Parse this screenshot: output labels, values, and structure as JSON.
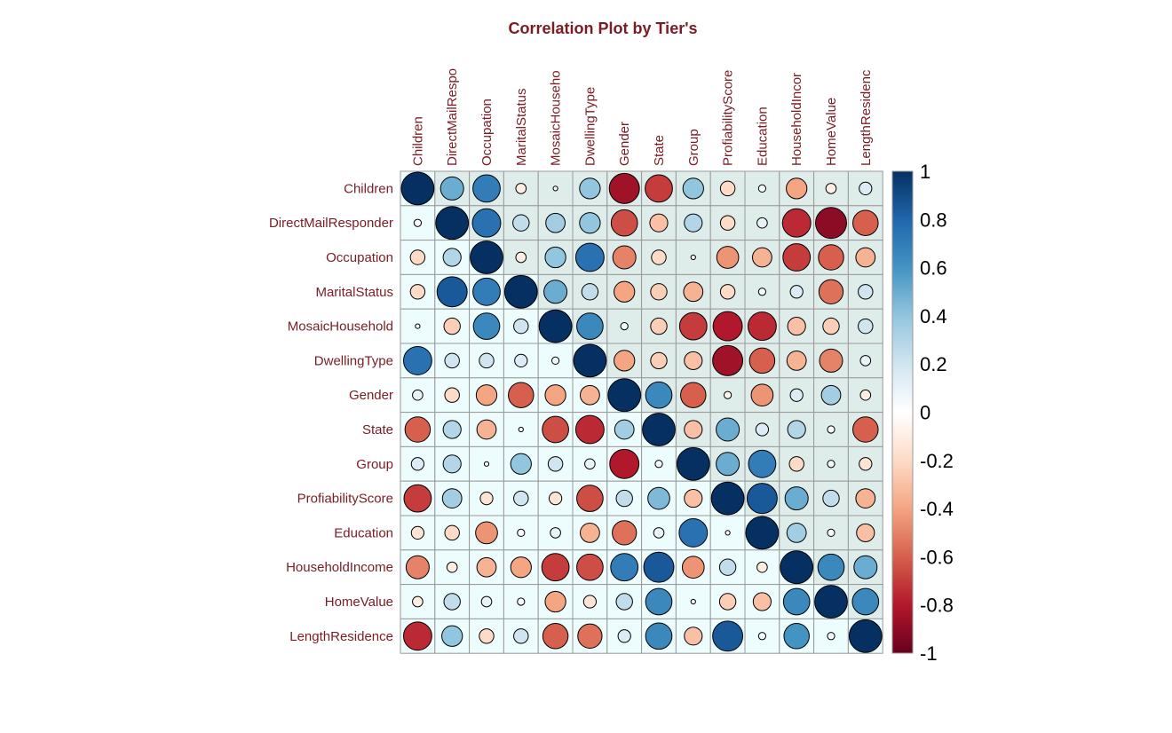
{
  "chart_data": {
    "type": "heatmap",
    "subtype": "correlation-circle",
    "title": "Correlation Plot by Tier's",
    "variables": [
      "Children",
      "DirectMailResponder",
      "Occupation",
      "MaritalStatus",
      "MosaicHousehold",
      "DwellingType",
      "Gender",
      "State",
      "Group",
      "ProfiabilityScore",
      "Education",
      "HouseholdIncome",
      "HomeValue",
      "LengthResidence"
    ],
    "column_labels": [
      "Children",
      "DirectMailRespo",
      "Occupation",
      "MaritalStatus",
      "MosaicHouseho",
      "DwellingType",
      "Gender",
      "State",
      "Group",
      "ProfiabilityScore",
      "Education",
      "HouseholdIncor",
      "HomeValue",
      "LengthResidenc"
    ],
    "matrix": [
      [
        1,
        0.5,
        0.7,
        -0.1,
        0.02,
        0.4,
        -0.85,
        -0.7,
        0.4,
        -0.2,
        0.05,
        -0.4,
        -0.1,
        0.15
      ],
      [
        0.05,
        1,
        0.75,
        0.25,
        0.35,
        0.4,
        -0.65,
        -0.3,
        0.3,
        -0.2,
        0.1,
        -0.75,
        -0.9,
        -0.6
      ],
      [
        -0.2,
        0.3,
        1,
        -0.1,
        0.4,
        0.75,
        -0.5,
        -0.2,
        0.02,
        -0.45,
        -0.35,
        -0.7,
        -0.6,
        -0.35
      ],
      [
        -0.2,
        0.85,
        0.7,
        1,
        0.5,
        0.25,
        -0.4,
        -0.25,
        -0.35,
        -0.2,
        0.05,
        0.15,
        -0.55,
        0.2
      ],
      [
        0.02,
        -0.25,
        0.65,
        0.2,
        1,
        0.65,
        0.05,
        -0.25,
        -0.7,
        -0.8,
        -0.75,
        -0.3,
        -0.25,
        0.2
      ],
      [
        0.75,
        0.2,
        0.2,
        0.15,
        0.05,
        1,
        -0.4,
        -0.25,
        -0.3,
        -0.85,
        -0.6,
        -0.35,
        -0.5,
        0.1
      ],
      [
        0.1,
        -0.2,
        -0.4,
        -0.6,
        -0.4,
        -0.35,
        1,
        0.65,
        -0.6,
        -0.05,
        -0.45,
        0.15,
        0.35,
        -0.1
      ],
      [
        -0.6,
        0.3,
        -0.35,
        0.02,
        -0.65,
        -0.75,
        0.35,
        1,
        -0.3,
        0.5,
        0.15,
        0.3,
        0.05,
        -0.6
      ],
      [
        0.15,
        0.3,
        0.02,
        0.4,
        0.2,
        0.1,
        -0.8,
        0.05,
        1,
        0.5,
        0.7,
        -0.2,
        0.05,
        -0.15
      ],
      [
        -0.7,
        0.35,
        -0.15,
        0.2,
        -0.15,
        -0.65,
        0.25,
        0.45,
        -0.3,
        1,
        0.85,
        0.5,
        0.25,
        -0.35
      ],
      [
        -0.15,
        -0.2,
        -0.45,
        0.05,
        0.1,
        -0.35,
        -0.55,
        0.1,
        0.75,
        0.02,
        1,
        0.35,
        0.05,
        -0.3
      ],
      [
        -0.5,
        -0.1,
        -0.35,
        -0.4,
        -0.7,
        -0.65,
        0.7,
        0.85,
        -0.45,
        0.25,
        -0.1,
        1,
        0.65,
        0.5
      ],
      [
        -0.1,
        0.25,
        0.1,
        0.05,
        -0.4,
        -0.15,
        0.25,
        0.65,
        0.02,
        -0.25,
        -0.3,
        0.65,
        1,
        0.65
      ],
      [
        -0.75,
        0.4,
        -0.2,
        0.2,
        -0.6,
        -0.55,
        0.15,
        0.65,
        -0.3,
        0.85,
        0.05,
        0.6,
        0.05,
        1
      ]
    ],
    "colorbar": {
      "range": [
        -1,
        1
      ],
      "tick_labels": [
        "1",
        "0.8",
        "0.6",
        "0.4",
        "0.2",
        "0",
        "-0.2",
        "-0.4",
        "-0.6",
        "-0.8",
        "-1"
      ],
      "colors": [
        "#053061",
        "#2166ac",
        "#4393c3",
        "#92c5de",
        "#d1e5f0",
        "#ffffff",
        "#fddbc7",
        "#f4a582",
        "#d6604d",
        "#b2182b",
        "#67001f"
      ]
    },
    "background": {
      "upper": "#deecea",
      "lower": "#edfcfc",
      "grid": "#9a9a9a"
    }
  }
}
